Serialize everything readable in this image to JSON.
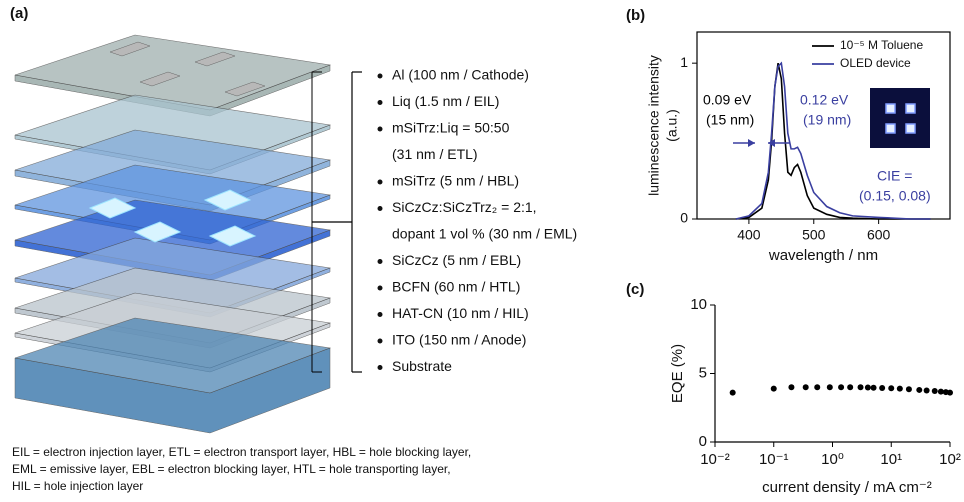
{
  "panel_a": {
    "label": "(a)",
    "layers": [
      {
        "text": "Al (100 nm / Cathode)",
        "bullet": true
      },
      {
        "text": "Liq (1.5 nm / EIL)",
        "bullet": true
      },
      {
        "text": "mSiTrz:Liq = 50:50",
        "bullet": true
      },
      {
        "text": "(31 nm / ETL)",
        "bullet": false
      },
      {
        "text": "mSiTrz (5 nm / HBL)",
        "bullet": true
      },
      {
        "text": "SiCzCz:SiCzTrz₂ = 2:1,",
        "bullet": true
      },
      {
        "text": "dopant 1 vol % (30 nm / EML)",
        "bullet": false
      },
      {
        "text": "SiCzCz (5 nm / EBL)",
        "bullet": true
      },
      {
        "text": "BCFN (60 nm / HTL)",
        "bullet": true
      },
      {
        "text": "HAT-CN (10 nm / HIL)",
        "bullet": true
      },
      {
        "text": "ITO (150 nm / Anode)",
        "bullet": true
      },
      {
        "text": "Substrate",
        "bullet": true
      }
    ],
    "footnote": [
      "EIL = electron injection layer, ETL = electron transport layer, HBL = hole blocking layer,",
      "EML = emissive layer, EBL = electron blocking layer, HTL = hole transporting layer,",
      "HIL = hole injection layer"
    ]
  },
  "chart_data": [
    {
      "type": "line",
      "label": "(b)",
      "xlabel": "wavelength / nm",
      "ylabel": "luminescence intensity",
      "ylabel_unit": "(a.u.)",
      "x": [
        380,
        400,
        420,
        430,
        435,
        440,
        445,
        450,
        455,
        460,
        465,
        470,
        475,
        480,
        490,
        500,
        520,
        540,
        560,
        600,
        650,
        680
      ],
      "series": [
        {
          "name": "10⁻⁵ M Toluene",
          "color": "#000000",
          "values": [
            0,
            0.01,
            0.07,
            0.25,
            0.5,
            0.85,
            1.0,
            0.9,
            0.55,
            0.3,
            0.28,
            0.33,
            0.35,
            0.3,
            0.15,
            0.07,
            0.03,
            0.01,
            0.005,
            0,
            0,
            0
          ]
        },
        {
          "name": "OLED device",
          "color": "#3a3fa0",
          "values": [
            0,
            0.02,
            0.1,
            0.3,
            0.55,
            0.85,
            0.98,
            1.0,
            0.85,
            0.55,
            0.45,
            0.45,
            0.46,
            0.42,
            0.28,
            0.17,
            0.08,
            0.04,
            0.02,
            0.01,
            0,
            0
          ]
        }
      ],
      "xlim": [
        320,
        710
      ],
      "ylim": [
        0,
        1.2
      ],
      "xticks": [
        400,
        500,
        600
      ],
      "yticks": [
        0,
        1
      ],
      "legend": "upper right",
      "annotations": [
        "0.09 eV",
        "(15 nm)",
        "0.12 eV",
        "(19 nm)",
        "CIE =",
        "(0.15, 0.08)"
      ]
    },
    {
      "type": "scatter",
      "label": "(c)",
      "xlabel": "current density / mA cm⁻²",
      "ylabel": "EQE  (%)",
      "x": [
        0.02,
        0.1,
        0.2,
        0.35,
        0.55,
        0.9,
        1.4,
        2,
        3,
        4,
        5,
        7,
        10,
        14,
        20,
        30,
        40,
        55,
        70,
        85,
        100
      ],
      "values": [
        3.6,
        3.9,
        4.0,
        4.0,
        4.0,
        4.0,
        4.0,
        4.0,
        4.0,
        3.98,
        3.96,
        3.94,
        3.92,
        3.9,
        3.85,
        3.8,
        3.76,
        3.72,
        3.68,
        3.64,
        3.6
      ],
      "color": "#000000",
      "xscale": "log",
      "xlim": [
        0.01,
        100
      ],
      "ylim": [
        0,
        10
      ],
      "xticks": [
        {
          "value": 0.01,
          "label": "10⁻²"
        },
        {
          "value": 0.1,
          "label": "10⁻¹"
        },
        {
          "value": 1,
          "label": "10⁰"
        },
        {
          "value": 10,
          "label": "10¹"
        },
        {
          "value": 100,
          "label": "10²"
        }
      ],
      "yticks": [
        0,
        5,
        10
      ]
    }
  ]
}
